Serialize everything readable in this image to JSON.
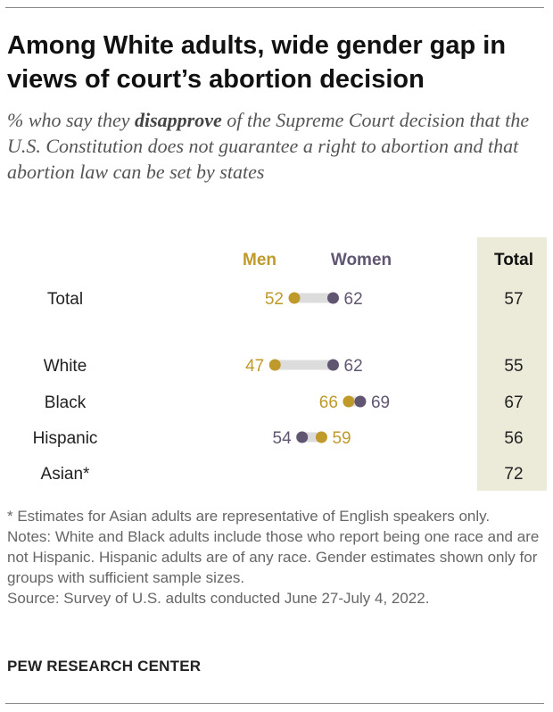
{
  "title": "Among White adults, wide gender gap in views of court’s abortion decision",
  "subtitle": {
    "before": "% who say they ",
    "emphasis": "disapprove",
    "after": " of the Supreme Court decision that the U.S. Constitution does not guarantee a right to abortion and that abortion law can be set by states"
  },
  "colors": {
    "men": "#bf9a2a",
    "women": "#615672",
    "total_column": "#ecead9",
    "track": "#dcdcdc"
  },
  "chart_data": {
    "type": "dot",
    "legend_placement": "top",
    "columns": {
      "men": "Men",
      "women": "Women",
      "total": "Total"
    },
    "series": [
      {
        "name": "Men",
        "values": [
          52,
          47,
          66,
          59,
          null
        ]
      },
      {
        "name": "Women",
        "values": [
          62,
          62,
          69,
          54,
          null
        ]
      }
    ],
    "categories": [
      "Total",
      "White",
      "Black",
      "Hispanic",
      "Asian*"
    ],
    "totals": [
      57,
      55,
      67,
      56,
      72
    ],
    "rows": [
      {
        "label": "Total",
        "men": 52,
        "women": 62,
        "total": 57
      },
      {
        "label": "White",
        "men": 47,
        "women": 62,
        "total": 55
      },
      {
        "label": "Black",
        "men": 66,
        "women": 69,
        "total": 67
      },
      {
        "label": "Hispanic",
        "men": 59,
        "women": 54,
        "total": 56
      },
      {
        "label": "Asian*",
        "men": null,
        "women": null,
        "total": 72
      }
    ]
  },
  "footnote": "* Estimates for Asian adults are representative of English speakers only.",
  "notes": "Notes: White and Black adults include those who report being one race and are not Hispanic. Hispanic adults are of any race. Gender estimates shown only for groups with sufficient sample sizes.",
  "source": "Source: Survey of U.S. adults conducted June 27-July 4, 2022.",
  "brand": "PEW RESEARCH CENTER"
}
